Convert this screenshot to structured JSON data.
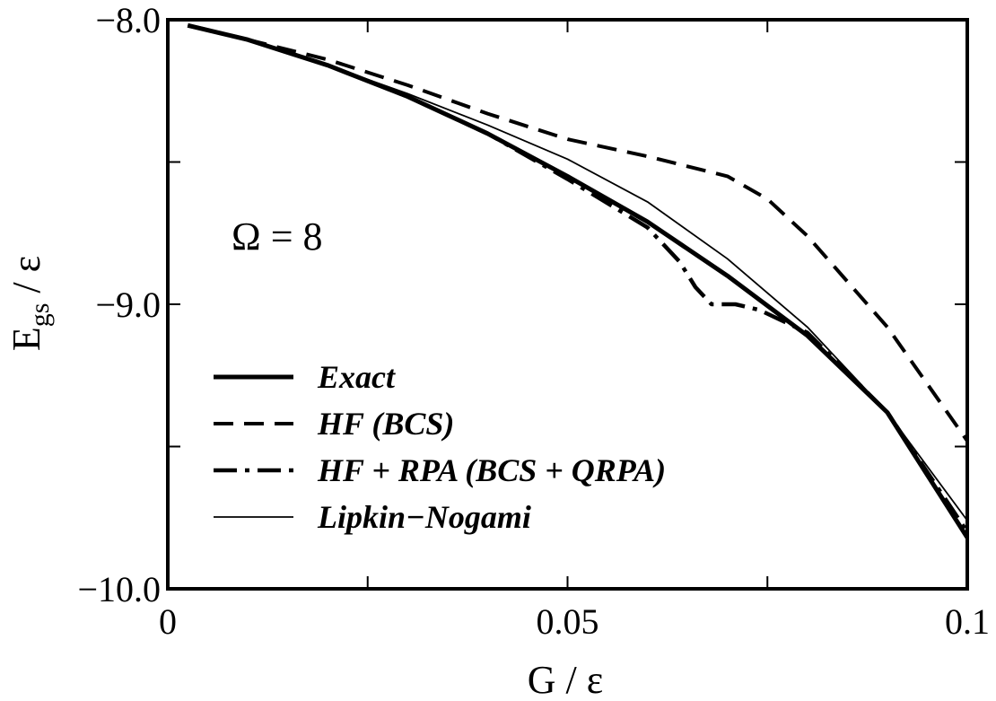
{
  "chart_data": {
    "type": "line",
    "title": "",
    "xlabel": "G  / ε",
    "ylabel_main": "E",
    "ylabel_sub": "gs",
    "ylabel_tail": " / ε",
    "xlim": [
      0,
      0.1
    ],
    "ylim": [
      -10.0,
      -8.0
    ],
    "x_ticks": [
      {
        "value": 0,
        "label": "0"
      },
      {
        "value": 0.05,
        "label": "0.05"
      },
      {
        "value": 0.1,
        "label": "0.1"
      }
    ],
    "x_minor_ticks": [
      0.025,
      0.075
    ],
    "y_ticks": [
      {
        "value": -8.0,
        "label": "−8.0"
      },
      {
        "value": -9.0,
        "label": "−9.0"
      },
      {
        "value": -10.0,
        "label": "−10.0"
      }
    ],
    "y_minor_ticks": [
      -8.5,
      -9.5
    ],
    "grid": false,
    "legend_placement": "bottom-left",
    "annotation": "Ω = 8",
    "series": [
      {
        "name": "Exact",
        "style": "solid-thick",
        "points": [
          [
            0.0025,
            -8.02
          ],
          [
            0.01,
            -8.07
          ],
          [
            0.02,
            -8.16
          ],
          [
            0.03,
            -8.27
          ],
          [
            0.04,
            -8.4
          ],
          [
            0.05,
            -8.55
          ],
          [
            0.06,
            -8.71
          ],
          [
            0.07,
            -8.9
          ],
          [
            0.08,
            -9.11
          ],
          [
            0.09,
            -9.38
          ],
          [
            0.1,
            -9.82
          ]
        ]
      },
      {
        "name": "HF (BCS)",
        "style": "dashed",
        "points": [
          [
            0.0025,
            -8.02
          ],
          [
            0.01,
            -8.07
          ],
          [
            0.02,
            -8.14
          ],
          [
            0.03,
            -8.23
          ],
          [
            0.04,
            -8.33
          ],
          [
            0.05,
            -8.42
          ],
          [
            0.06,
            -8.48
          ],
          [
            0.07,
            -8.55
          ],
          [
            0.075,
            -8.63
          ],
          [
            0.08,
            -8.76
          ],
          [
            0.09,
            -9.08
          ],
          [
            0.1,
            -9.48
          ]
        ]
      },
      {
        "name": "HF + RPA (BCS + QRPA)",
        "style": "dash-dot",
        "points": [
          [
            0.0025,
            -8.02
          ],
          [
            0.01,
            -8.07
          ],
          [
            0.02,
            -8.16
          ],
          [
            0.03,
            -8.27
          ],
          [
            0.04,
            -8.4
          ],
          [
            0.05,
            -8.56
          ],
          [
            0.06,
            -8.73
          ],
          [
            0.064,
            -8.85
          ],
          [
            0.066,
            -8.94
          ],
          [
            0.068,
            -9.0
          ],
          [
            0.071,
            -9.0
          ],
          [
            0.074,
            -9.02
          ],
          [
            0.08,
            -9.1
          ],
          [
            0.09,
            -9.38
          ],
          [
            0.1,
            -9.8
          ]
        ]
      },
      {
        "name": "Lipkin−Nogami",
        "style": "solid-thin",
        "points": [
          [
            0.0025,
            -8.02
          ],
          [
            0.01,
            -8.07
          ],
          [
            0.02,
            -8.16
          ],
          [
            0.03,
            -8.26
          ],
          [
            0.04,
            -8.37
          ],
          [
            0.05,
            -8.49
          ],
          [
            0.06,
            -8.64
          ],
          [
            0.07,
            -8.84
          ],
          [
            0.08,
            -9.08
          ],
          [
            0.09,
            -9.38
          ],
          [
            0.1,
            -9.76
          ]
        ]
      }
    ]
  }
}
